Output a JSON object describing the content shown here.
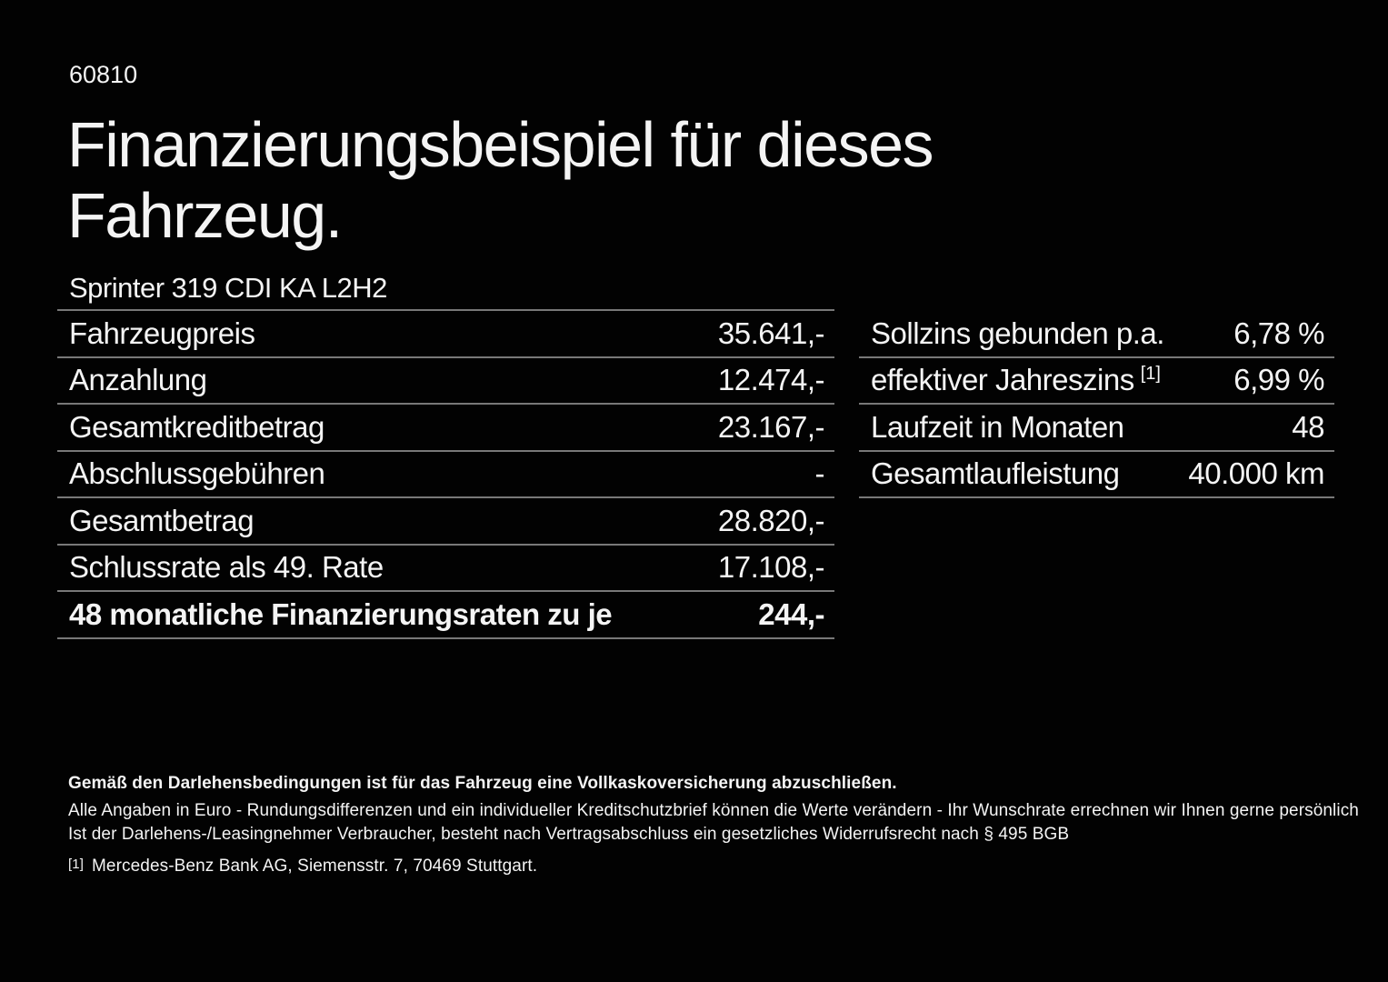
{
  "page": {
    "document_number": "60810",
    "title_line1": "Finanzierungsbeispiel für dieses",
    "title_line2": "Fahrzeug."
  },
  "left_table": {
    "header": "Sprinter 319 CDI KA L2H2",
    "rows": [
      {
        "label": "Fahrzeugpreis",
        "value": "35.641,-"
      },
      {
        "label": "Anzahlung",
        "value": "12.474,-"
      },
      {
        "label": "Gesamtkreditbetrag",
        "value": "23.167,-"
      },
      {
        "label": "Abschlussgebühren",
        "value": "-"
      },
      {
        "label": "Gesamtbetrag",
        "value": "28.820,-"
      },
      {
        "label": "Schlussrate als 49. Rate",
        "value": "17.108,-"
      },
      {
        "label": "48 monatliche Finanzierungsraten zu je",
        "value": "244,-"
      }
    ]
  },
  "right_table": {
    "rows": [
      {
        "label": "Sollzins gebunden p.a.",
        "value": "6,78 %"
      },
      {
        "label": "effektiver Jahreszins",
        "superscript": "[1]",
        "value": "6,99 %"
      },
      {
        "label": "Laufzeit in Monaten",
        "value": "48"
      },
      {
        "label": "Gesamtlaufleistung",
        "value": "40.000 km"
      }
    ]
  },
  "footer": {
    "bold_note": "Gemäß den Darlehensbedingungen ist für das Fahrzeug eine Vollkaskoversicherung abzuschließen.",
    "note_line1": "Alle Angaben in Euro - Rundungsdifferenzen und ein individueller Kreditschutzbrief können die Werte verändern - Ihr Wunschrate errechnen wir Ihnen gerne persönlich",
    "note_line2": "Ist der Darlehens-/Leasingnehmer Verbraucher, besteht nach Vertragsabschluss ein gesetzliches Widerrufsrecht nach § 495 BGB",
    "footnote_marker": "[1]",
    "footnote_text": "Mercedes-Benz Bank AG, Siemensstr. 7, 70469 Stuttgart."
  },
  "colors": {
    "background": "#020202",
    "text": "#f4f4f4",
    "divider": "#787878"
  }
}
